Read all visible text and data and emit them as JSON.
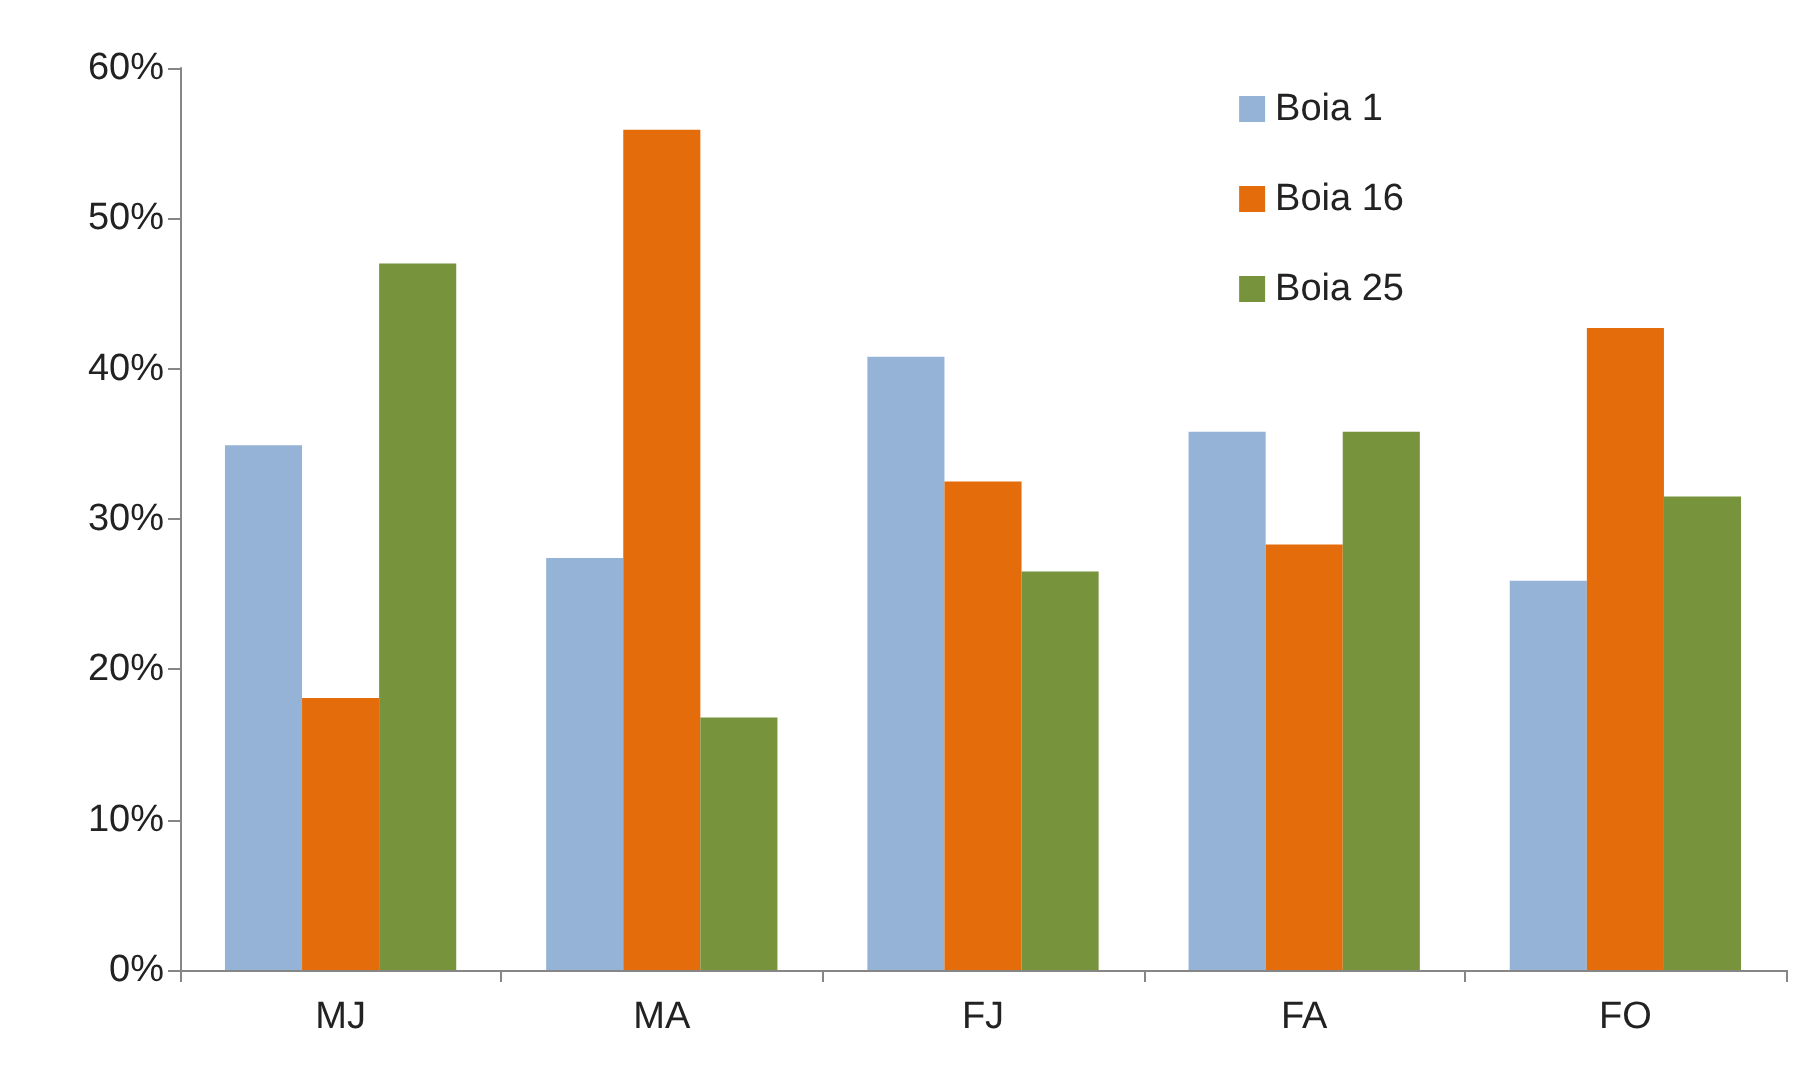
{
  "chart_data": {
    "type": "bar",
    "categories": [
      "MJ",
      "MA",
      "FJ",
      "FA",
      "FO"
    ],
    "series": [
      {
        "name": "Boia 1",
        "color": "#95b3d7",
        "values": [
          34.9,
          27.4,
          40.8,
          35.8,
          25.9
        ]
      },
      {
        "name": "Boia 16",
        "color": "#e46c0a",
        "values": [
          18.1,
          55.9,
          32.5,
          28.3,
          42.7
        ]
      },
      {
        "name": "Boia 25",
        "color": "#77933c",
        "values": [
          47,
          16.8,
          26.5,
          35.8,
          31.5
        ]
      }
    ],
    "ylim": [
      0,
      60
    ],
    "yticks": [
      {
        "value": 0,
        "label": "0%"
      },
      {
        "value": 10,
        "label": "10%"
      },
      {
        "value": 20,
        "label": "20%"
      },
      {
        "value": 30,
        "label": "30%"
      },
      {
        "value": 40,
        "label": "40%"
      },
      {
        "value": 50,
        "label": "50%"
      },
      {
        "value": 60,
        "label": "60%"
      }
    ],
    "grid": false,
    "legend": "top right"
  }
}
